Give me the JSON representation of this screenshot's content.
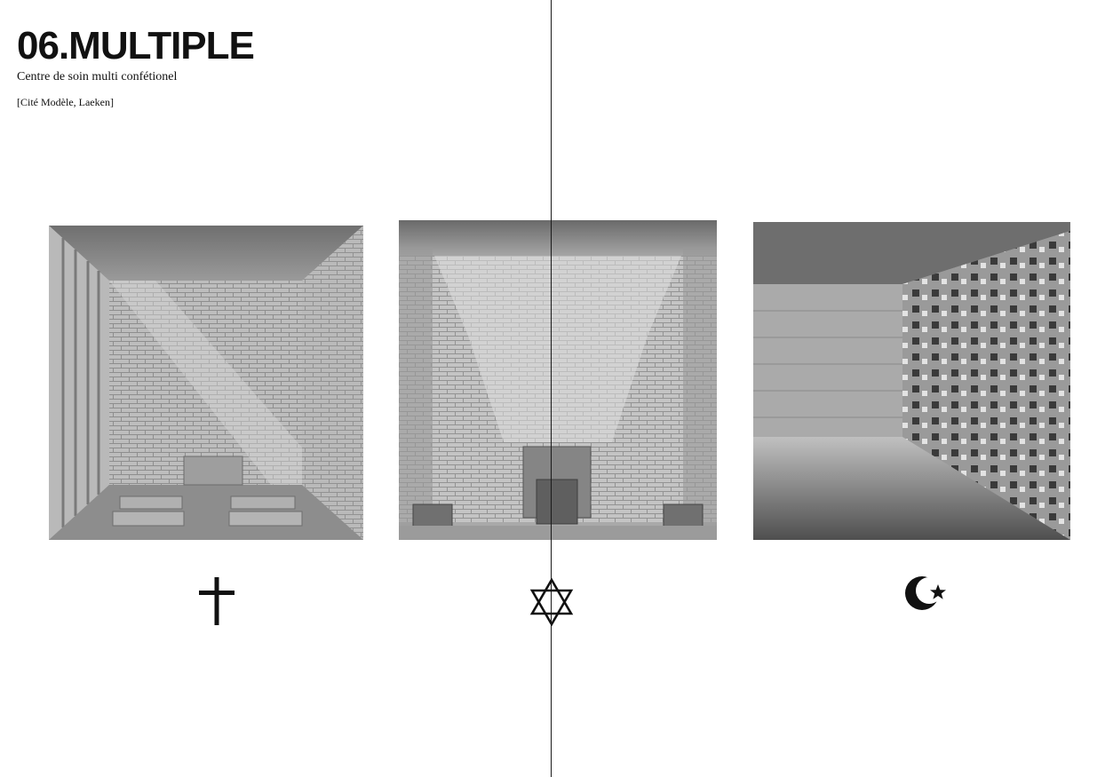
{
  "header": {
    "title": "06.MULTIPLE",
    "subtitle": "Centre de soin multi confétionel",
    "location": "[Cité Modèle, Laeken]"
  },
  "drawings": [
    {
      "name": "christian-chapel-drawing",
      "symbol": "cross-icon"
    },
    {
      "name": "jewish-chapel-drawing",
      "symbol": "star-of-david-icon"
    },
    {
      "name": "muslim-prayer-room-drawing",
      "symbol": "crescent-star-icon"
    }
  ],
  "colors": {
    "text": "#111111",
    "divider": "#1a1a1a",
    "pencil_light": "#c9c9c9",
    "pencil_mid": "#9a9a9a",
    "pencil_dark": "#505050"
  }
}
